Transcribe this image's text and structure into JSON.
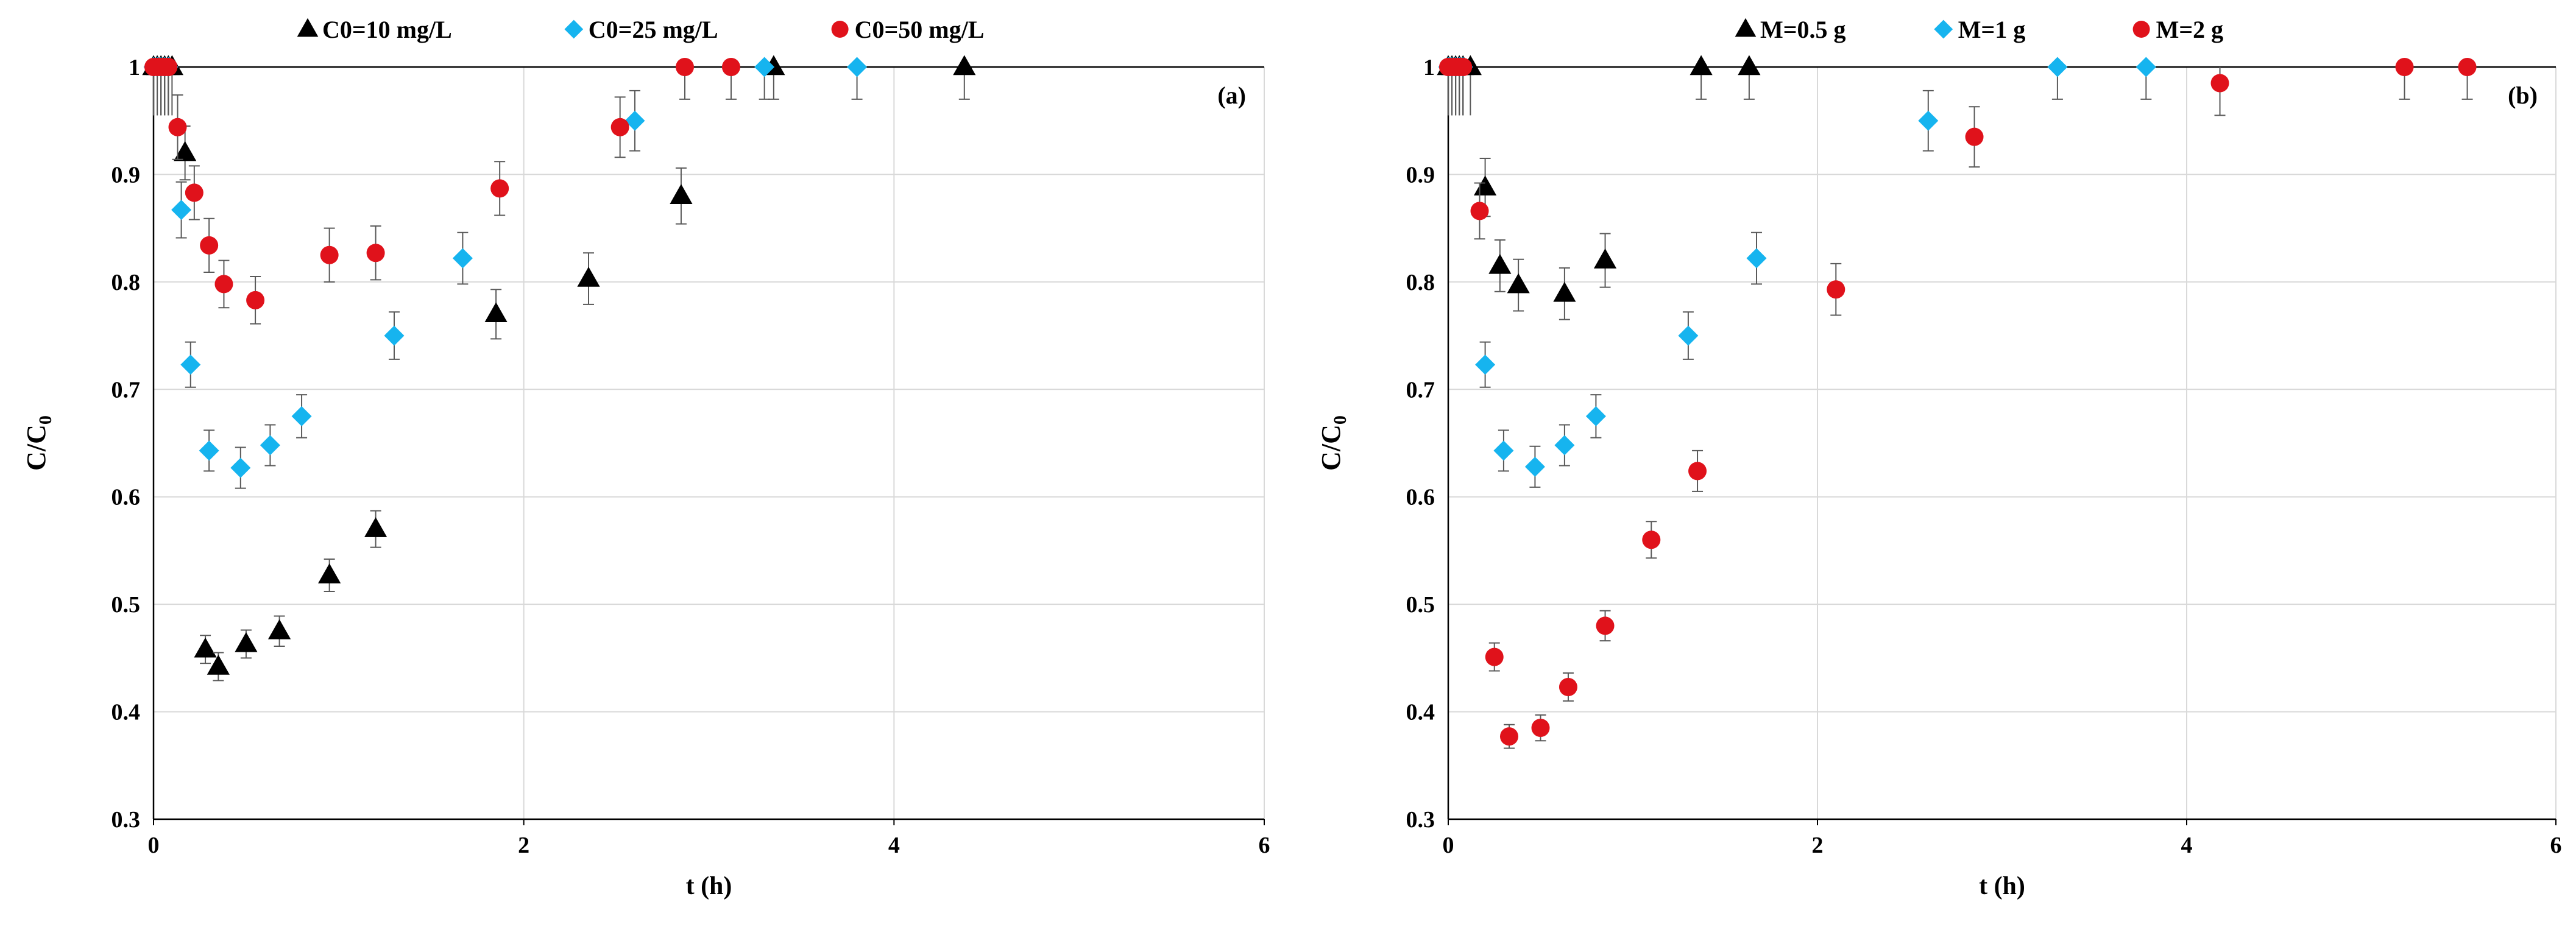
{
  "chart_data": [
    {
      "type": "scatter",
      "panel_label": "(a)",
      "xlabel": "t (h)",
      "ylabel_main": "C/C",
      "ylabel_sub": "0",
      "xlim": [
        0,
        6
      ],
      "ylim": [
        0.3,
        1
      ],
      "xticks": [
        0,
        2,
        4,
        6
      ],
      "yticks": [
        0.3,
        0.4,
        0.5,
        0.6,
        0.7,
        0.8,
        0.9,
        1
      ],
      "grid": true,
      "legend_position": "top-center",
      "series": [
        {
          "name": "C0=10 mg/L",
          "marker": "triangle",
          "color": "#000000",
          "x": [
            0,
            0.02,
            0.04,
            0.06,
            0.08,
            0.1,
            0.17,
            0.28,
            0.35,
            0.5,
            0.68,
            0.95,
            1.2,
            1.85,
            2.35,
            2.85,
            3.35,
            4.38
          ],
          "y": [
            1,
            1,
            1,
            1,
            1,
            1,
            0.92,
            0.458,
            0.442,
            0.463,
            0.475,
            0.527,
            0.57,
            0.77,
            0.803,
            0.88,
            1,
            1
          ],
          "err": [
            0,
            0,
            0,
            0,
            0,
            0,
            0.025,
            0.013,
            0.013,
            0.013,
            0.014,
            0.015,
            0.017,
            0.023,
            0.024,
            0.026,
            0.03,
            0.03
          ]
        },
        {
          "name": "C0=25 mg/L",
          "marker": "diamond",
          "color": "#16b4ef",
          "x": [
            0,
            0.02,
            0.04,
            0.06,
            0.08,
            0.15,
            0.2,
            0.3,
            0.47,
            0.63,
            0.8,
            1.3,
            1.67,
            2.6,
            3.3,
            3.8
          ],
          "y": [
            1,
            1,
            1,
            1,
            1,
            0.867,
            0.723,
            0.643,
            0.627,
            0.648,
            0.675,
            0.75,
            0.822,
            0.95,
            1,
            1
          ],
          "err": [
            0,
            0,
            0,
            0,
            0,
            0.026,
            0.021,
            0.019,
            0.019,
            0.019,
            0.02,
            0.022,
            0.024,
            0.028,
            0.03,
            0.03
          ]
        },
        {
          "name": "C0=50 mg/L",
          "marker": "circle",
          "color": "#e0121b",
          "x": [
            0,
            0.02,
            0.04,
            0.06,
            0.08,
            0.13,
            0.22,
            0.3,
            0.38,
            0.55,
            0.95,
            1.2,
            1.87,
            2.52,
            2.87,
            3.12
          ],
          "y": [
            1,
            1,
            1,
            1,
            1,
            0.944,
            0.883,
            0.834,
            0.798,
            0.783,
            0.825,
            0.827,
            0.887,
            0.944,
            1,
            1
          ],
          "err": [
            0,
            0,
            0,
            0,
            0,
            0.03,
            0.025,
            0.025,
            0.022,
            0.022,
            0.025,
            0.025,
            0.025,
            0.028,
            0.03,
            0.03
          ]
        }
      ]
    },
    {
      "type": "scatter",
      "panel_label": "(b)",
      "xlabel": "t (h)",
      "ylabel_main": "C/C",
      "ylabel_sub": "0",
      "xlim": [
        0,
        6
      ],
      "ylim": [
        0.3,
        1
      ],
      "xticks": [
        0,
        2,
        4,
        6
      ],
      "yticks": [
        0.3,
        0.4,
        0.5,
        0.6,
        0.7,
        0.8,
        0.9,
        1
      ],
      "grid": true,
      "legend_position": "top-center",
      "series": [
        {
          "name": "M=0.5 g",
          "marker": "triangle",
          "color": "#000000",
          "x": [
            0,
            0.02,
            0.04,
            0.06,
            0.08,
            0.12,
            0.2,
            0.28,
            0.38,
            0.63,
            0.85,
            1.37,
            1.63
          ],
          "y": [
            1,
            1,
            1,
            1,
            1,
            1,
            0.888,
            0.815,
            0.797,
            0.789,
            0.82,
            1,
            1
          ],
          "err": [
            0,
            0,
            0,
            0,
            0,
            0,
            0.027,
            0.024,
            0.024,
            0.024,
            0.025,
            0.03,
            0.03
          ]
        },
        {
          "name": "M=1 g",
          "marker": "diamond",
          "color": "#16b4ef",
          "x": [
            0,
            0.02,
            0.04,
            0.06,
            0.08,
            0.2,
            0.3,
            0.47,
            0.63,
            0.8,
            1.3,
            1.67,
            2.6,
            3.3,
            3.78
          ],
          "y": [
            1,
            1,
            1,
            1,
            1,
            0.723,
            0.643,
            0.628,
            0.648,
            0.675,
            0.75,
            0.822,
            0.95,
            1,
            1
          ],
          "err": [
            0,
            0,
            0,
            0,
            0,
            0.021,
            0.019,
            0.019,
            0.019,
            0.02,
            0.022,
            0.024,
            0.028,
            0.03,
            0.03
          ]
        },
        {
          "name": "M=2 g",
          "marker": "circle",
          "color": "#e0121b",
          "x": [
            0,
            0.02,
            0.04,
            0.06,
            0.08,
            0.17,
            0.25,
            0.33,
            0.5,
            0.65,
            0.85,
            1.1,
            1.35,
            2.1,
            2.85,
            4.18,
            5.18,
            5.52
          ],
          "y": [
            1,
            1,
            1,
            1,
            1,
            0.866,
            0.451,
            0.377,
            0.385,
            0.423,
            0.48,
            0.56,
            0.624,
            0.793,
            0.935,
            0.985,
            1,
            1
          ],
          "err": [
            0,
            0,
            0,
            0,
            0,
            0.026,
            0.013,
            0.011,
            0.012,
            0.013,
            0.014,
            0.017,
            0.019,
            0.024,
            0.028,
            0.03,
            0.03,
            0.03
          ]
        }
      ]
    }
  ]
}
